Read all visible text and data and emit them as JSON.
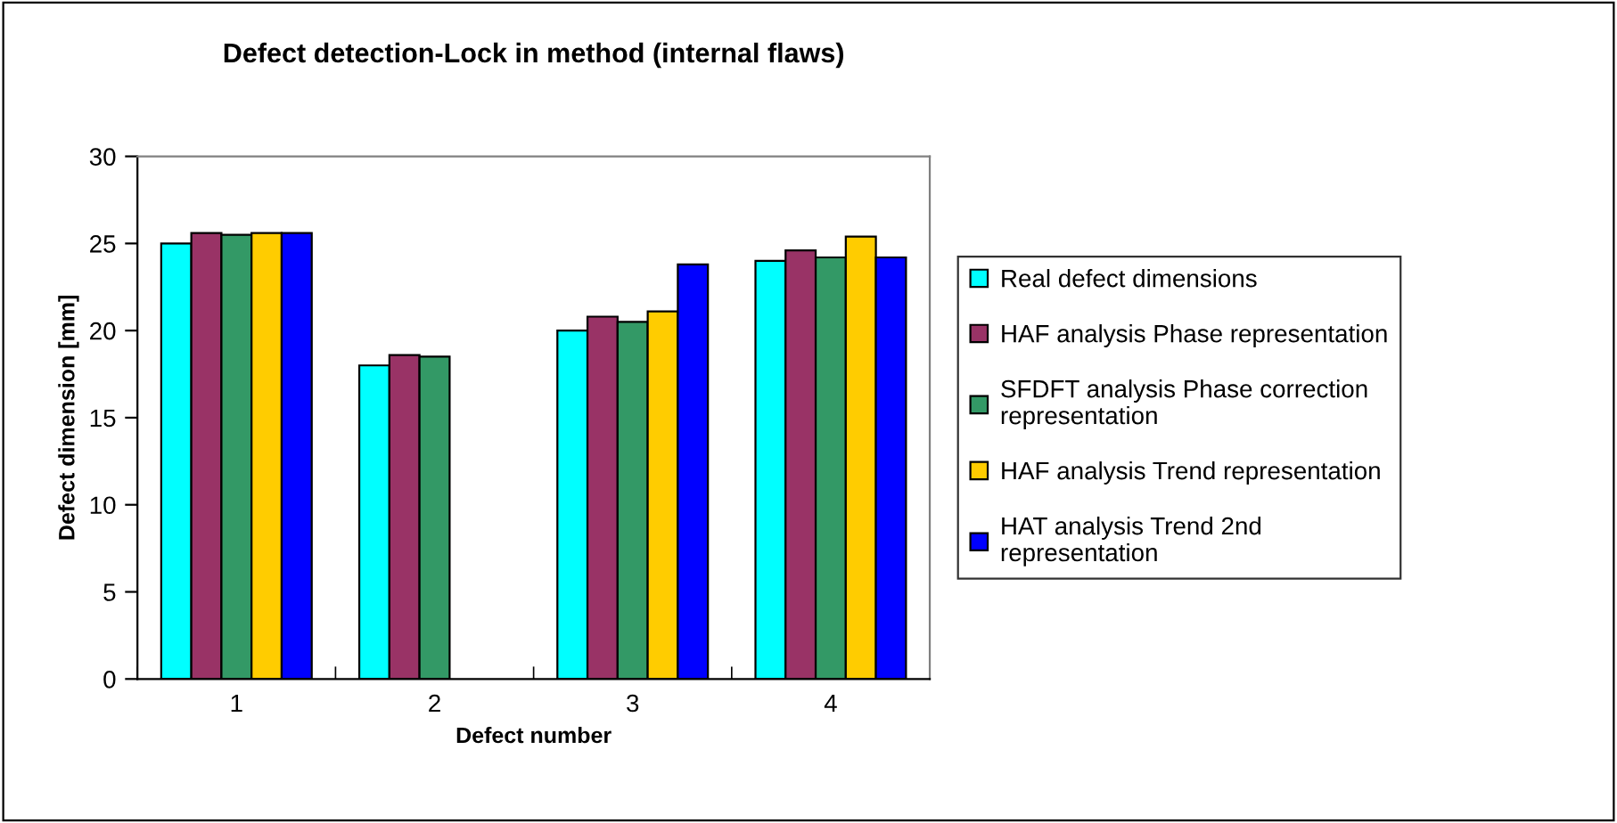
{
  "chart_data": {
    "type": "bar",
    "title": "Defect detection-Lock in method (internal flaws)",
    "xlabel": "Defect number",
    "ylabel": "Defect dimension [mm]",
    "categories": [
      "1",
      "2",
      "3",
      "4"
    ],
    "series": [
      {
        "name": "Real defect dimensions",
        "color": "#00ffff",
        "values": [
          25,
          18,
          20,
          24
        ]
      },
      {
        "name": "HAF analysis Phase representation",
        "color": "#993366",
        "values": [
          25.6,
          18.6,
          20.8,
          24.6
        ]
      },
      {
        "name": "SFDFT analysis Phase correction\nrepresentation",
        "color": "#339966",
        "values": [
          25.5,
          18.5,
          20.5,
          24.2
        ]
      },
      {
        "name": "HAF analysis Trend representation",
        "color": "#ffcc00",
        "values": [
          25.6,
          null,
          21.1,
          25.4
        ]
      },
      {
        "name": "HAT analysis Trend 2nd\nrepresentation",
        "color": "#0000ff",
        "values": [
          25.6,
          null,
          23.8,
          24.2
        ]
      }
    ],
    "ylim": [
      0,
      30
    ],
    "yticks": [
      0,
      5,
      10,
      15,
      20,
      25,
      30
    ],
    "grid": false,
    "legend": "right"
  }
}
